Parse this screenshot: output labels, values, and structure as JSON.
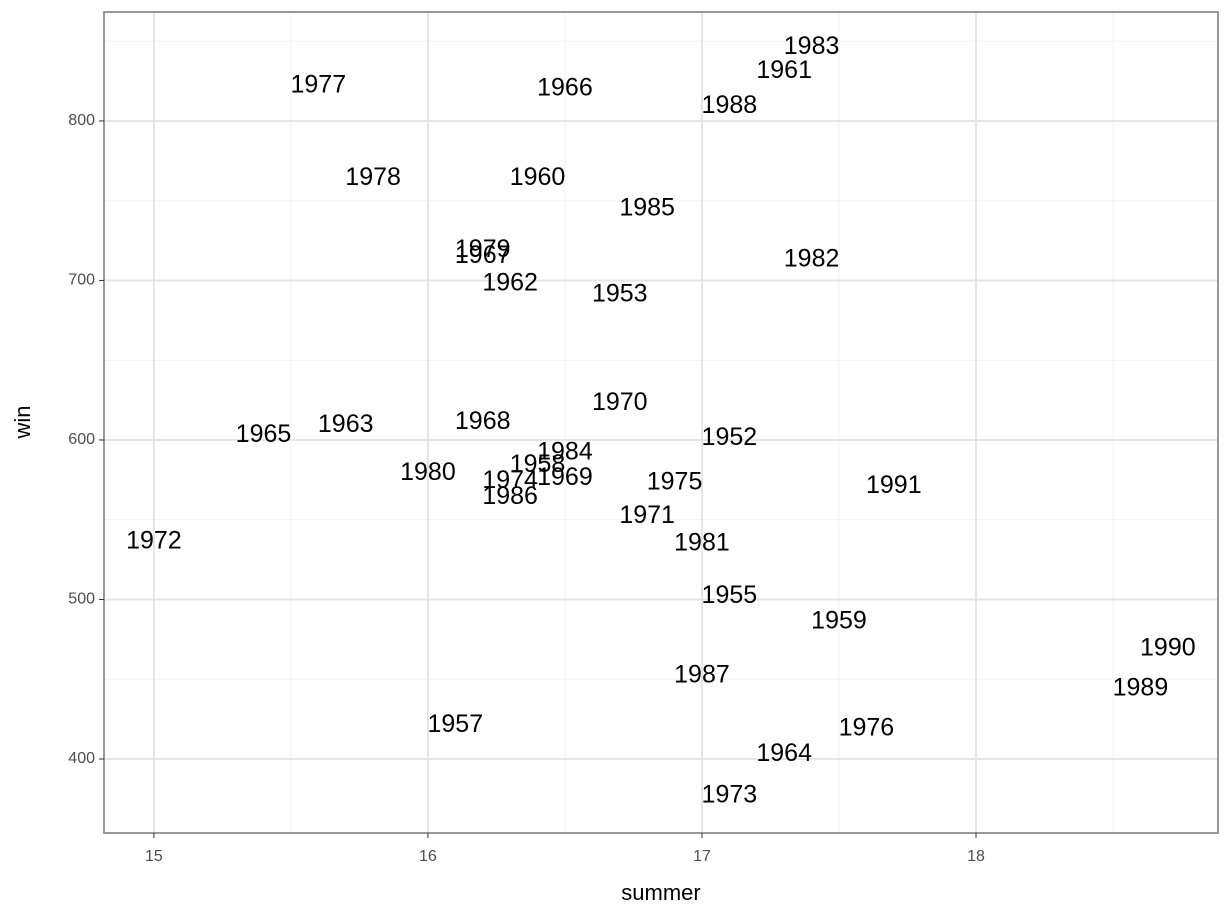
{
  "chart_data": {
    "type": "text-scatter",
    "x_label": "summer",
    "y_label": "win",
    "xlim": [
      14.818,
      18.883
    ],
    "ylim": [
      353.6,
      868.3
    ],
    "xticks": [
      15,
      16,
      17,
      18
    ],
    "yticks": [
      400,
      500,
      600,
      700,
      800
    ],
    "grid": true,
    "color": "#000000",
    "labels": [
      "1983",
      "1961",
      "1977",
      "1966",
      "1988",
      "1978",
      "1960",
      "1985",
      "1979",
      "1967",
      "1982",
      "1962",
      "1953",
      "1970",
      "1963",
      "1968",
      "1965",
      "1952",
      "1984",
      "1958",
      "1980",
      "1969",
      "1974",
      "1975",
      "1991",
      "1986",
      "1971",
      "1972",
      "1981",
      "1955",
      "1959",
      "1990",
      "1989",
      "1987",
      "1957",
      "1976",
      "1964",
      "1973"
    ],
    "x": [
      17.4,
      17.3,
      15.6,
      16.5,
      17.1,
      15.8,
      16.4,
      16.8,
      16.2,
      16.2,
      17.4,
      16.3,
      16.7,
      16.7,
      15.7,
      16.2,
      15.4,
      17.1,
      16.5,
      16.4,
      16.0,
      16.5,
      16.3,
      16.9,
      17.7,
      16.3,
      16.8,
      15.0,
      17.0,
      17.1,
      17.5,
      18.7,
      18.6,
      17.0,
      16.1,
      17.6,
      17.3,
      17.1
    ],
    "values": [
      846,
      831,
      822,
      820,
      809,
      764,
      764,
      745,
      719,
      715,
      713,
      698,
      691,
      623,
      609,
      611,
      603,
      601,
      592,
      584,
      579,
      576,
      574,
      573,
      571,
      564,
      552,
      536,
      535,
      502,
      486,
      469,
      444,
      452,
      421,
      419,
      403,
      377
    ]
  }
}
